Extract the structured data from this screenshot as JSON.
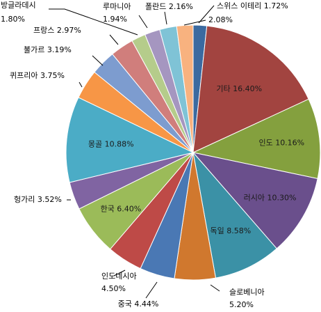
{
  "chart_data": {
    "type": "pie",
    "title": "",
    "start_angle_deg": 0,
    "direction": "clockwise",
    "slices": [
      {
        "label": "스위스 이테리",
        "value": 1.72,
        "display": "스위스 이테리 1.72%",
        "color": "#3B6AA0"
      },
      {
        "label": "기타",
        "value": 16.4,
        "display": "기타 16.40%",
        "color": "#A24440"
      },
      {
        "label": "인도",
        "value": 10.16,
        "display": "인도 10.16%",
        "color": "#84A03E"
      },
      {
        "label": "러시아",
        "value": 10.3,
        "display": "러시아 10.30%",
        "color": "#6A4F8C"
      },
      {
        "label": "독일",
        "value": 8.58,
        "display": "독일 8.58%",
        "color": "#3B91A6"
      },
      {
        "label": "슬로베니아",
        "value": 5.2,
        "display": "슬로베니아 5.20%",
        "color": "#D0782E"
      },
      {
        "label": "중국",
        "value": 4.44,
        "display": "중국 4.44%",
        "color": "#4A78B4"
      },
      {
        "label": "인도네시아",
        "value": 4.5,
        "display": "인도네시아 4.50%",
        "color": "#BE4A47"
      },
      {
        "label": "한국",
        "value": 6.4,
        "display": "한국 6.40%",
        "color": "#9BBB59"
      },
      {
        "label": "헝가리",
        "value": 3.52,
        "display": "헝가리 3.52%",
        "color": "#8064A2"
      },
      {
        "label": "몽골",
        "value": 10.88,
        "display": "몽골 10.88%",
        "color": "#4BACC6"
      },
      {
        "label": "퀴프리아",
        "value": 3.75,
        "display": "퀴프리아 3.75%",
        "color": "#F79646"
      },
      {
        "label": "불가르",
        "value": 3.19,
        "display": "불가르 3.19%",
        "color": "#7D9CCF"
      },
      {
        "label": "프랑스",
        "value": 2.97,
        "display": "프랑스 2.97%",
        "color": "#D07E7C"
      },
      {
        "label": "방글라데시",
        "value": 1.8,
        "display": "방글라데시 1.80%",
        "color": "#B5CC8B"
      },
      {
        "label": "루마니아",
        "value": 1.94,
        "display": "루마니아 1.94%",
        "color": "#A596C0"
      },
      {
        "label": "폴란드",
        "value": 2.16,
        "display": "폴란드 2.16%",
        "color": "#7FC3D6"
      },
      {
        "label": "",
        "value": 2.08,
        "display": "2.08%",
        "color": "#F8B27F"
      }
    ]
  }
}
